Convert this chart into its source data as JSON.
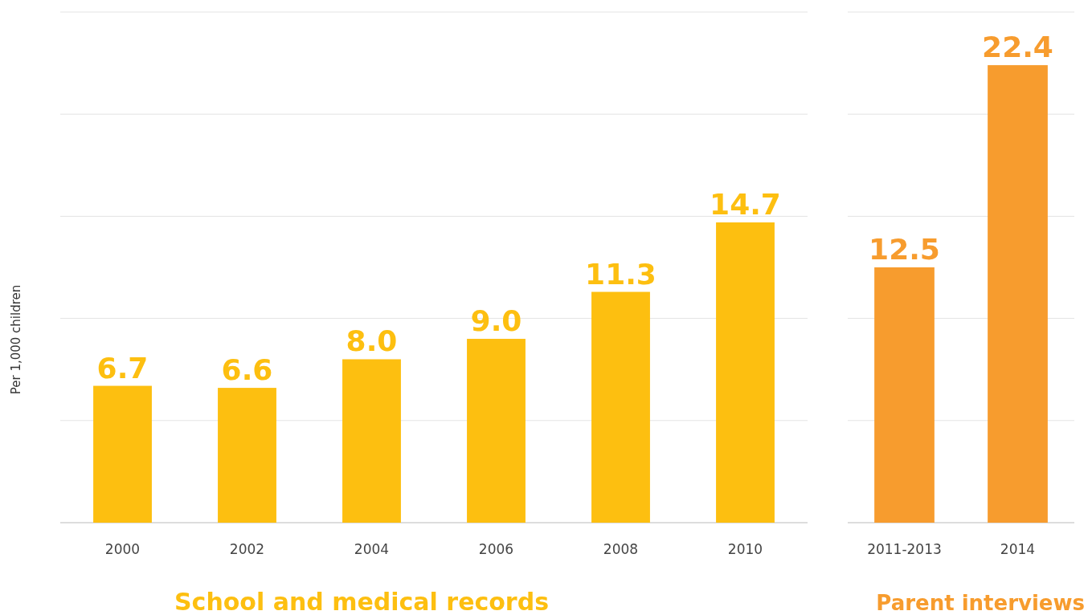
{
  "chart_data": [
    {
      "type": "bar",
      "xlabel": "School and medical records",
      "ylabel": "Per 1,000 children",
      "categories": [
        "2000",
        "2002",
        "2004",
        "2006",
        "2008",
        "2010"
      ],
      "values": [
        6.7,
        6.6,
        8.0,
        9.0,
        11.3,
        14.7
      ],
      "value_labels": [
        "6.7",
        "6.6",
        "8.0",
        "9.0",
        "11.3",
        "14.7"
      ],
      "color": "#fdbf10",
      "ylim": [
        0,
        25
      ],
      "yticks": [
        {
          "value": 0,
          "label": null
        },
        {
          "value": 5,
          "label": null
        },
        {
          "value": 10,
          "label": null
        },
        {
          "value": 15,
          "label": null
        },
        {
          "value": 20,
          "label": null
        },
        {
          "value": 25,
          "label": null
        }
      ],
      "grid": "y",
      "tick_labels": "x"
    },
    {
      "type": "bar",
      "xlabel": "Parent interviews",
      "categories": [
        "2011-2013",
        "2014"
      ],
      "values": [
        12.5,
        22.4
      ],
      "color": "#f79c2e",
      "ylim": [
        0,
        25
      ],
      "yticks": [
        {
          "value": 0,
          "label": null
        },
        {
          "value": 5,
          "label": null
        },
        {
          "value": 10,
          "label": null
        },
        {
          "value": 15,
          "label": null
        },
        {
          "value": 20,
          "label": null
        },
        {
          "value": 25,
          "label": null
        }
      ],
      "grid": "y",
      "tick_labels": "x",
      "data_labels": true
    }
  ]
}
